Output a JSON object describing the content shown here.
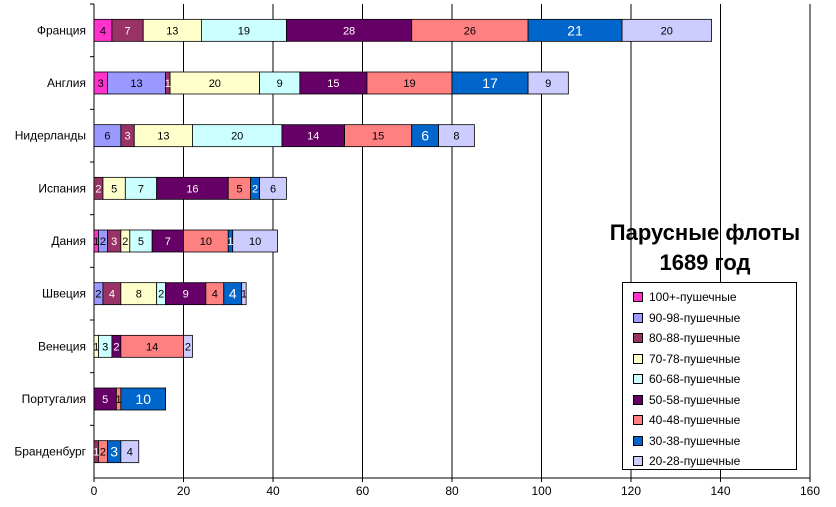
{
  "chart_data": {
    "type": "bar",
    "orientation": "horizontal",
    "stacked": true,
    "title": "Парусные флоты",
    "subtitle": "1689 год",
    "xlim": [
      0,
      160
    ],
    "xticks": [
      "0",
      "20",
      "40",
      "60",
      "80",
      "100",
      "120",
      "140",
      "160"
    ],
    "grid": true,
    "legend_position": "right",
    "categories": [
      "Франция",
      "Англия",
      "Нидерланды",
      "Испания",
      "Дания",
      "Швеция",
      "Венеция",
      "Португалия",
      "Бранденбург"
    ],
    "series": [
      {
        "name": "100+-пушечные",
        "color": "#ff33cc",
        "values": [
          4,
          3,
          0,
          0,
          1,
          0,
          0,
          0,
          0
        ],
        "labels": [
          "4",
          "3",
          "",
          "",
          "1",
          "",
          "",
          "",
          ""
        ]
      },
      {
        "name": "90-98-пушечные",
        "color": "#9999ff",
        "values": [
          0,
          13,
          6,
          0,
          2,
          2,
          0,
          0,
          0
        ],
        "labels": [
          "",
          "13",
          "6",
          "",
          "2",
          "2",
          "",
          "",
          ""
        ]
      },
      {
        "name": "80-88-пушечные",
        "color": "#993366",
        "values": [
          7,
          1,
          3,
          2,
          3,
          4,
          0,
          0,
          1
        ],
        "labels": [
          "7",
          "1",
          "3",
          "2",
          "3",
          "4",
          "",
          "",
          "1"
        ]
      },
      {
        "name": "70-78-пушечные",
        "color": "#ffffcc",
        "values": [
          13,
          20,
          13,
          5,
          2,
          8,
          1,
          0,
          0
        ],
        "labels": [
          "13",
          "20",
          "13",
          "5",
          "2",
          "8",
          "1",
          "",
          ""
        ]
      },
      {
        "name": "60-68-пушечные",
        "color": "#ccffff",
        "values": [
          19,
          9,
          20,
          7,
          5,
          2,
          3,
          0,
          0
        ],
        "labels": [
          "19",
          "9",
          "20",
          "7",
          "5",
          "2",
          "3",
          "",
          ""
        ]
      },
      {
        "name": "50-58-пушечные",
        "color": "#660066",
        "values": [
          28,
          15,
          14,
          16,
          7,
          9,
          2,
          5,
          0
        ],
        "labels": [
          "28",
          "15",
          "14",
          "16",
          "7",
          "9",
          "2",
          "5",
          ""
        ]
      },
      {
        "name": "40-48-пушечные",
        "color": "#ff8080",
        "values": [
          26,
          19,
          15,
          5,
          10,
          4,
          14,
          1,
          2
        ],
        "labels": [
          "26",
          "19",
          "15",
          "5",
          "10",
          "4",
          "14",
          "1",
          "2"
        ]
      },
      {
        "name": "30-38-пушечные",
        "color": "#0066cc",
        "values": [
          21,
          17,
          6,
          2,
          1,
          4,
          0,
          10,
          3
        ],
        "labels": [
          "21",
          "17",
          "6",
          "2",
          "1",
          "4",
          "",
          "10",
          "3"
        ]
      },
      {
        "name": "20-28-пушечные",
        "color": "#ccccff",
        "values": [
          20,
          9,
          8,
          6,
          10,
          1,
          2,
          0,
          4
        ],
        "labels": [
          "20",
          "9",
          "8",
          "6",
          "10",
          "1",
          "2",
          "",
          "4"
        ]
      }
    ]
  }
}
